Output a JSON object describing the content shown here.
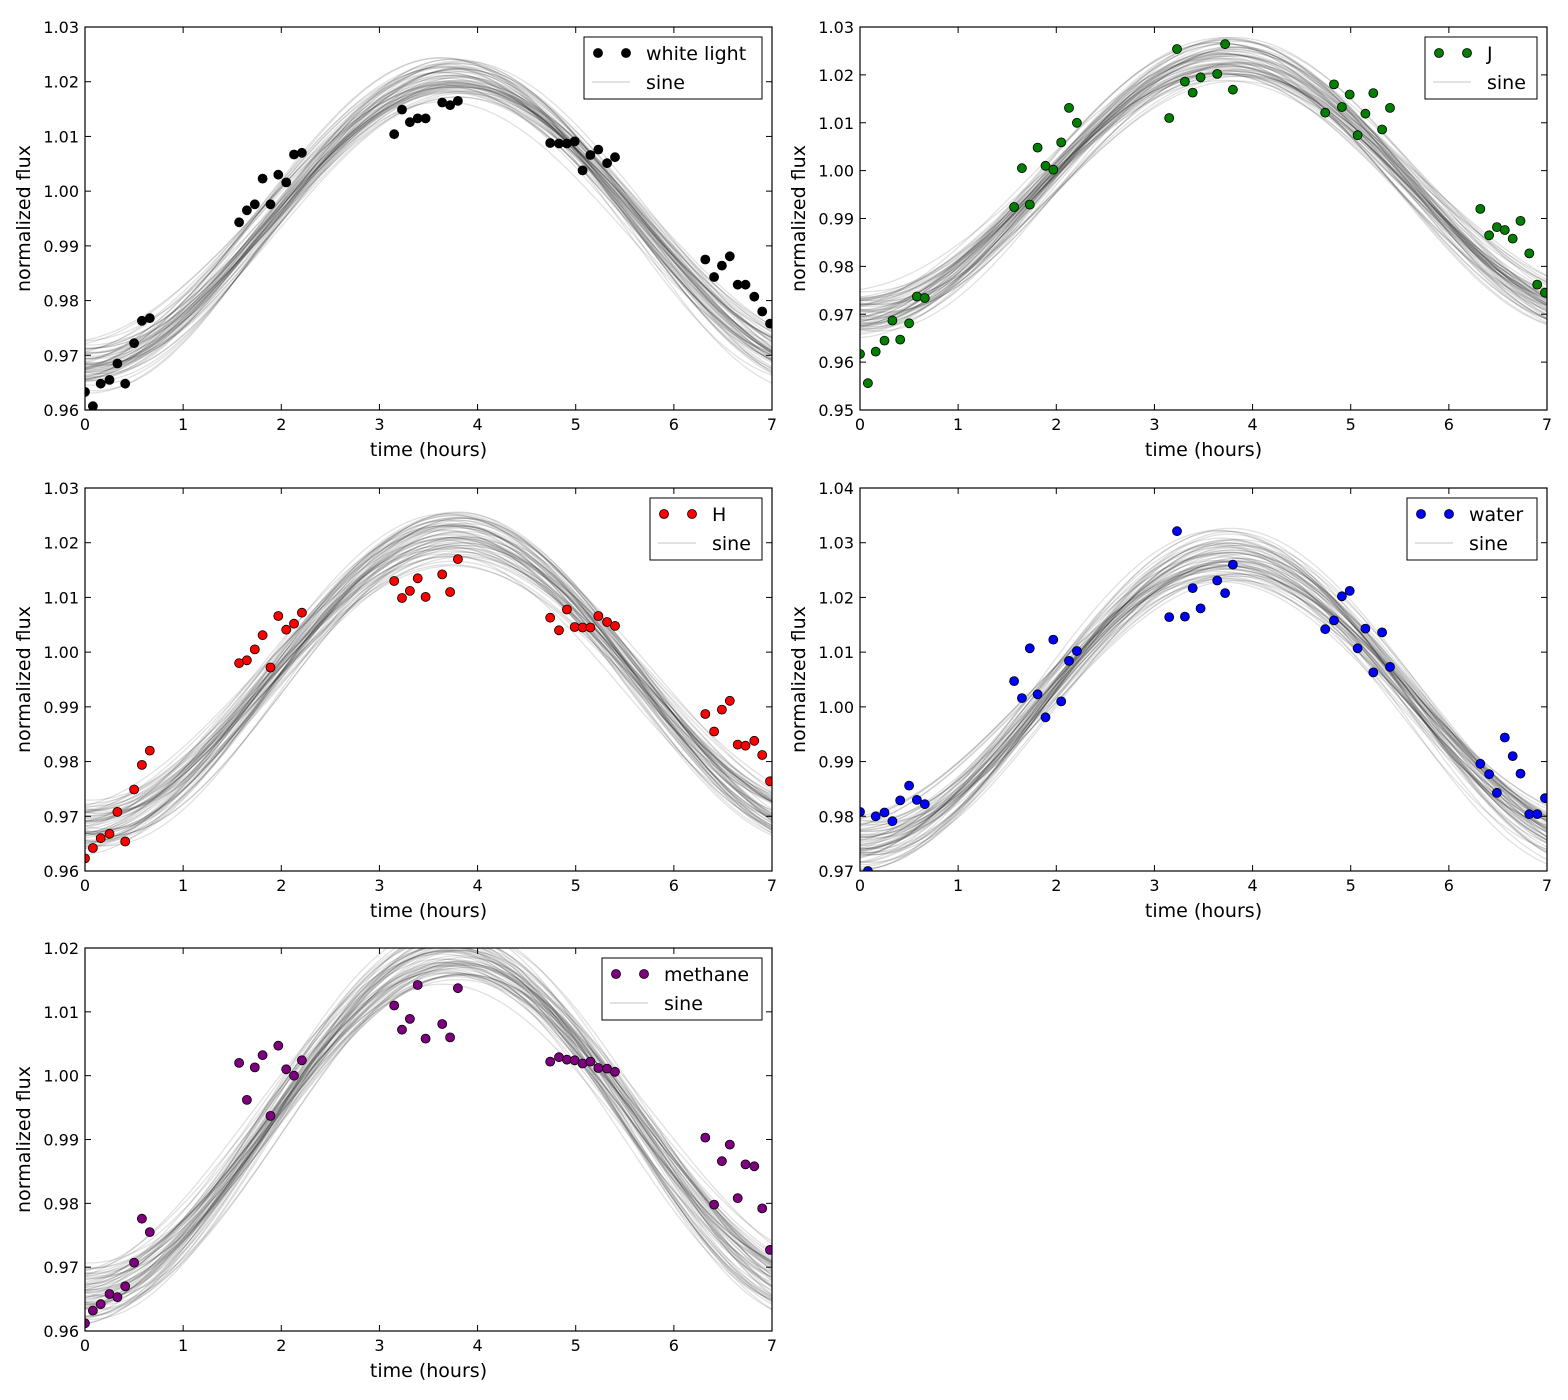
{
  "figure": {
    "title": ""
  },
  "model": {
    "sine": {
      "amplitude": 0.0265,
      "baseline": 0.995,
      "period_hours": 7.6,
      "peak_time": 3.75
    }
  },
  "chart_data": [
    {
      "type": "scatter",
      "title": "",
      "xlabel": "time (hours)",
      "ylabel": "normalized flux",
      "xlim": [
        0,
        7
      ],
      "ylim": [
        0.96,
        1.03
      ],
      "xticks": [
        "0",
        "1",
        "2",
        "3",
        "4",
        "5",
        "6",
        "7"
      ],
      "yticks": [
        "0.96",
        "0.97",
        "0.98",
        "0.99",
        "1.00",
        "1.01",
        "1.02",
        "1.03"
      ],
      "legend": [
        "white light",
        "sine"
      ],
      "legend_position": "top-right",
      "marker_color": "#000000",
      "points": [
        [
          0.0,
          0.9633
        ],
        [
          0.08,
          0.9607
        ],
        [
          0.16,
          0.9648
        ],
        [
          0.25,
          0.9655
        ],
        [
          0.33,
          0.9685
        ],
        [
          0.41,
          0.9648
        ],
        [
          0.5,
          0.9722
        ],
        [
          0.58,
          0.9763
        ],
        [
          0.66,
          0.9768
        ],
        [
          1.57,
          0.9943
        ],
        [
          1.65,
          0.9965
        ],
        [
          1.73,
          0.9976
        ],
        [
          1.81,
          1.0023
        ],
        [
          1.89,
          0.9976
        ],
        [
          1.97,
          1.003
        ],
        [
          2.05,
          1.0016
        ],
        [
          2.13,
          1.0067
        ],
        [
          2.21,
          1.007
        ],
        [
          3.15,
          1.0104
        ],
        [
          3.23,
          1.0149
        ],
        [
          3.31,
          1.0126
        ],
        [
          3.39,
          1.0133
        ],
        [
          3.47,
          1.0133
        ],
        [
          3.64,
          1.0162
        ],
        [
          3.72,
          1.0157
        ],
        [
          3.8,
          1.0165
        ],
        [
          4.74,
          1.0088
        ],
        [
          4.83,
          1.0087
        ],
        [
          4.91,
          1.0087
        ],
        [
          4.99,
          1.0091
        ],
        [
          5.07,
          1.0038
        ],
        [
          5.15,
          1.0066
        ],
        [
          5.23,
          1.0076
        ],
        [
          5.32,
          1.0051
        ],
        [
          5.4,
          1.0062
        ],
        [
          6.32,
          0.9875
        ],
        [
          6.41,
          0.9843
        ],
        [
          6.49,
          0.9864
        ],
        [
          6.57,
          0.9881
        ],
        [
          6.65,
          0.9829
        ],
        [
          6.73,
          0.9829
        ],
        [
          6.82,
          0.9807
        ],
        [
          6.9,
          0.978
        ],
        [
          6.98,
          0.9758
        ]
      ]
    },
    {
      "type": "scatter",
      "title": "",
      "xlabel": "time (hours)",
      "ylabel": "normalized flux",
      "xlim": [
        0,
        7
      ],
      "ylim": [
        0.95,
        1.03
      ],
      "xticks": [
        "0",
        "1",
        "2",
        "3",
        "4",
        "5",
        "6",
        "7"
      ],
      "yticks": [
        "0.95",
        "0.96",
        "0.97",
        "0.98",
        "0.99",
        "1.00",
        "1.01",
        "1.02",
        "1.03"
      ],
      "legend": [
        "J",
        "sine"
      ],
      "legend_position": "top-right",
      "marker_color": "#007f00",
      "points": [
        [
          0.0,
          0.9617
        ],
        [
          0.08,
          0.9556
        ],
        [
          0.16,
          0.9622
        ],
        [
          0.25,
          0.9645
        ],
        [
          0.33,
          0.9687
        ],
        [
          0.41,
          0.9647
        ],
        [
          0.5,
          0.9681
        ],
        [
          0.58,
          0.9737
        ],
        [
          0.66,
          0.9734
        ],
        [
          1.57,
          0.9924
        ],
        [
          1.65,
          1.0005
        ],
        [
          1.73,
          0.9929
        ],
        [
          1.81,
          1.0048
        ],
        [
          1.89,
          1.001
        ],
        [
          1.97,
          1.0002
        ],
        [
          2.05,
          1.0059
        ],
        [
          2.13,
          1.0131
        ],
        [
          2.21,
          1.01
        ],
        [
          3.15,
          1.011
        ],
        [
          3.23,
          1.0254
        ],
        [
          3.31,
          1.0186
        ],
        [
          3.39,
          1.0163
        ],
        [
          3.47,
          1.0195
        ],
        [
          3.64,
          1.0202
        ],
        [
          3.72,
          1.0264
        ],
        [
          3.8,
          1.0169
        ],
        [
          4.74,
          1.0121
        ],
        [
          4.83,
          1.018
        ],
        [
          4.91,
          1.0133
        ],
        [
          4.99,
          1.0159
        ],
        [
          5.07,
          1.0074
        ],
        [
          5.15,
          1.0119
        ],
        [
          5.23,
          1.0162
        ],
        [
          5.32,
          1.0086
        ],
        [
          5.4,
          1.0131
        ],
        [
          6.32,
          0.992
        ],
        [
          6.41,
          0.9865
        ],
        [
          6.49,
          0.9882
        ],
        [
          6.57,
          0.9876
        ],
        [
          6.65,
          0.9858
        ],
        [
          6.73,
          0.9895
        ],
        [
          6.82,
          0.9827
        ],
        [
          6.9,
          0.9762
        ],
        [
          6.98,
          0.9745
        ]
      ]
    },
    {
      "type": "scatter",
      "title": "",
      "xlabel": "time (hours)",
      "ylabel": "normalized flux",
      "xlim": [
        0,
        7
      ],
      "ylim": [
        0.96,
        1.03
      ],
      "xticks": [
        "0",
        "1",
        "2",
        "3",
        "4",
        "5",
        "6",
        "7"
      ],
      "yticks": [
        "0.96",
        "0.97",
        "0.98",
        "0.99",
        "1.00",
        "1.01",
        "1.02",
        "1.03"
      ],
      "legend": [
        "H",
        "sine"
      ],
      "legend_position": "top-right",
      "marker_color": "#ff0000",
      "points": [
        [
          0.0,
          0.9623
        ],
        [
          0.08,
          0.9642
        ],
        [
          0.16,
          0.966
        ],
        [
          0.25,
          0.9668
        ],
        [
          0.33,
          0.9708
        ],
        [
          0.41,
          0.9654
        ],
        [
          0.5,
          0.9749
        ],
        [
          0.58,
          0.9794
        ],
        [
          0.66,
          0.982
        ],
        [
          1.57,
          0.998
        ],
        [
          1.65,
          0.9985
        ],
        [
          1.73,
          1.0005
        ],
        [
          1.81,
          1.0031
        ],
        [
          1.89,
          0.9972
        ],
        [
          1.97,
          1.0066
        ],
        [
          2.05,
          1.0041
        ],
        [
          2.13,
          1.0052
        ],
        [
          2.21,
          1.0072
        ],
        [
          3.15,
          1.013
        ],
        [
          3.23,
          1.0099
        ],
        [
          3.31,
          1.0112
        ],
        [
          3.39,
          1.0135
        ],
        [
          3.47,
          1.0101
        ],
        [
          3.64,
          1.0142
        ],
        [
          3.72,
          1.011
        ],
        [
          3.8,
          1.017
        ],
        [
          4.74,
          1.0063
        ],
        [
          4.83,
          1.004
        ],
        [
          4.91,
          1.0078
        ],
        [
          4.99,
          1.0046
        ],
        [
          5.07,
          1.0045
        ],
        [
          5.15,
          1.0045
        ],
        [
          5.23,
          1.0066
        ],
        [
          5.32,
          1.0055
        ],
        [
          5.4,
          1.0048
        ],
        [
          6.32,
          0.9887
        ],
        [
          6.41,
          0.9855
        ],
        [
          6.49,
          0.9895
        ],
        [
          6.57,
          0.9911
        ],
        [
          6.65,
          0.9831
        ],
        [
          6.73,
          0.9829
        ],
        [
          6.82,
          0.9838
        ],
        [
          6.9,
          0.9812
        ],
        [
          6.98,
          0.9764
        ]
      ]
    },
    {
      "type": "scatter",
      "title": "",
      "xlabel": "time (hours)",
      "ylabel": "normalized flux",
      "xlim": [
        0,
        7
      ],
      "ylim": [
        0.97,
        1.04
      ],
      "xticks": [
        "0",
        "1",
        "2",
        "3",
        "4",
        "5",
        "6",
        "7"
      ],
      "yticks": [
        "0.97",
        "0.98",
        "0.99",
        "1.00",
        "1.01",
        "1.02",
        "1.03",
        "1.04"
      ],
      "legend": [
        "water",
        "sine"
      ],
      "legend_position": "top-right",
      "marker_color": "#0000ff",
      "points": [
        [
          0.0,
          0.9808
        ],
        [
          0.08,
          0.97
        ],
        [
          0.16,
          0.98
        ],
        [
          0.25,
          0.9807
        ],
        [
          0.33,
          0.9791
        ],
        [
          0.41,
          0.9829
        ],
        [
          0.5,
          0.9856
        ],
        [
          0.58,
          0.983
        ],
        [
          0.66,
          0.9822
        ],
        [
          1.57,
          1.0047
        ],
        [
          1.65,
          1.0016
        ],
        [
          1.73,
          1.0107
        ],
        [
          1.81,
          1.0023
        ],
        [
          1.89,
          0.9981
        ],
        [
          1.97,
          1.0123
        ],
        [
          2.05,
          1.001
        ],
        [
          2.13,
          1.0084
        ],
        [
          2.21,
          1.0102
        ],
        [
          3.15,
          1.0164
        ],
        [
          3.23,
          1.0321
        ],
        [
          3.31,
          1.0165
        ],
        [
          3.39,
          1.0217
        ],
        [
          3.47,
          1.018
        ],
        [
          3.64,
          1.0231
        ],
        [
          3.72,
          1.0208
        ],
        [
          3.8,
          1.026
        ],
        [
          4.74,
          1.0142
        ],
        [
          4.83,
          1.0158
        ],
        [
          4.91,
          1.0202
        ],
        [
          4.99,
          1.0212
        ],
        [
          5.07,
          1.0107
        ],
        [
          5.15,
          1.0143
        ],
        [
          5.23,
          1.0063
        ],
        [
          5.32,
          1.0136
        ],
        [
          5.4,
          1.0073
        ],
        [
          6.32,
          0.9896
        ],
        [
          6.41,
          0.9877
        ],
        [
          6.49,
          0.9843
        ],
        [
          6.57,
          0.9944
        ],
        [
          6.65,
          0.991
        ],
        [
          6.73,
          0.9878
        ],
        [
          6.82,
          0.9804
        ],
        [
          6.9,
          0.9804
        ],
        [
          6.98,
          0.9833
        ]
      ]
    },
    {
      "type": "scatter",
      "title": "",
      "xlabel": "time (hours)",
      "ylabel": "normalized flux",
      "xlim": [
        0,
        7
      ],
      "ylim": [
        0.96,
        1.02
      ],
      "xticks": [
        "0",
        "1",
        "2",
        "3",
        "4",
        "5",
        "6",
        "7"
      ],
      "yticks": [
        "0.96",
        "0.97",
        "0.98",
        "0.99",
        "1.00",
        "1.01",
        "1.02"
      ],
      "legend": [
        "methane",
        "sine"
      ],
      "legend_position": "top-right",
      "marker_color": "#7f007f",
      "points": [
        [
          0.0,
          0.9612
        ],
        [
          0.08,
          0.9632
        ],
        [
          0.16,
          0.9642
        ],
        [
          0.25,
          0.9658
        ],
        [
          0.33,
          0.9653
        ],
        [
          0.41,
          0.967
        ],
        [
          0.5,
          0.9707
        ],
        [
          0.58,
          0.9776
        ],
        [
          0.66,
          0.9755
        ],
        [
          1.57,
          1.002
        ],
        [
          1.65,
          0.9962
        ],
        [
          1.73,
          1.0013
        ],
        [
          1.81,
          1.0032
        ],
        [
          1.89,
          0.9937
        ],
        [
          1.97,
          1.0047
        ],
        [
          2.05,
          1.001
        ],
        [
          2.13,
          1.0
        ],
        [
          2.21,
          1.0024
        ],
        [
          3.15,
          1.011
        ],
        [
          3.23,
          1.0072
        ],
        [
          3.31,
          1.0089
        ],
        [
          3.39,
          1.0142
        ],
        [
          3.47,
          1.0058
        ],
        [
          3.64,
          1.0081
        ],
        [
          3.72,
          1.006
        ],
        [
          3.8,
          1.0137
        ],
        [
          4.74,
          1.0022
        ],
        [
          4.83,
          1.0029
        ],
        [
          4.91,
          1.0025
        ],
        [
          4.99,
          1.0024
        ],
        [
          5.07,
          1.0019
        ],
        [
          5.15,
          1.0022
        ],
        [
          5.23,
          1.0012
        ],
        [
          5.32,
          1.0011
        ],
        [
          5.4,
          1.0006
        ],
        [
          6.32,
          0.9903
        ],
        [
          6.41,
          0.9798
        ],
        [
          6.49,
          0.9866
        ],
        [
          6.57,
          0.9892
        ],
        [
          6.65,
          0.9808
        ],
        [
          6.73,
          0.9861
        ],
        [
          6.82,
          0.9858
        ],
        [
          6.9,
          0.9792
        ],
        [
          6.98,
          0.9727
        ]
      ]
    }
  ]
}
